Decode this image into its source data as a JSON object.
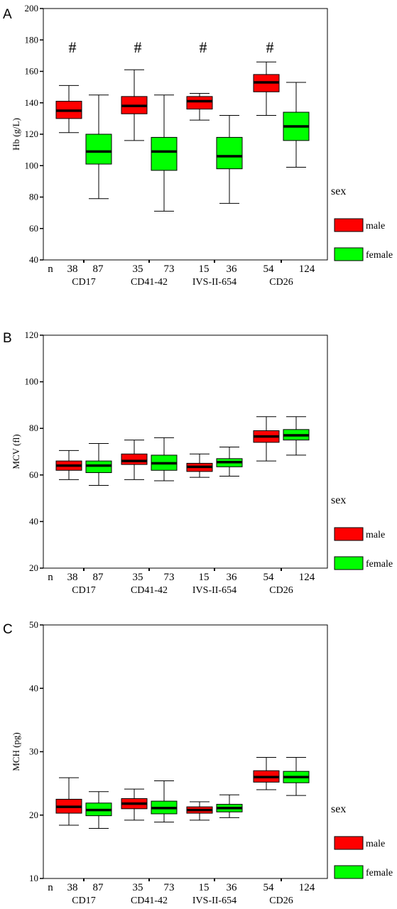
{
  "chart_data": [
    {
      "type": "box",
      "panel": "A",
      "ylabel": "Hb (g/L)",
      "ylim": [
        40,
        200
      ],
      "yticks": [
        40,
        60,
        80,
        100,
        120,
        140,
        160,
        180,
        200
      ],
      "count_label": "n",
      "groups": [
        "CD17",
        "CD41-42",
        "IVS-II-654",
        "CD26"
      ],
      "legend": {
        "title": "sex",
        "position": "right"
      },
      "series": [
        {
          "name": "male",
          "color": "#ff0000",
          "n": [
            38,
            35,
            15,
            54
          ],
          "boxes": [
            {
              "min": 121,
              "q1": 130,
              "median": 135,
              "q3": 141,
              "max": 151
            },
            {
              "min": 116,
              "q1": 133,
              "median": 138,
              "q3": 144,
              "max": 161
            },
            {
              "min": 129,
              "q1": 136,
              "median": 141,
              "q3": 144,
              "max": 146
            },
            {
              "min": 132,
              "q1": 147,
              "median": 153,
              "q3": 158,
              "max": 166
            }
          ]
        },
        {
          "name": "female",
          "color": "#00ff00",
          "n": [
            87,
            73,
            36,
            124
          ],
          "boxes": [
            {
              "min": 79,
              "q1": 101,
              "median": 109,
              "q3": 120,
              "max": 145
            },
            {
              "min": 71,
              "q1": 97,
              "median": 109,
              "q3": 118,
              "max": 145
            },
            {
              "min": 76,
              "q1": 98,
              "median": 106,
              "q3": 118,
              "max": 132
            },
            {
              "min": 99,
              "q1": 116,
              "median": 125,
              "q3": 134,
              "max": 153
            }
          ]
        }
      ],
      "annotations": [
        "#",
        "#",
        "#",
        "#"
      ]
    },
    {
      "type": "box",
      "panel": "B",
      "ylabel": "MCV (fl)",
      "ylim": [
        20,
        120
      ],
      "yticks": [
        20,
        40,
        60,
        80,
        100,
        120
      ],
      "count_label": "n",
      "groups": [
        "CD17",
        "CD41-42",
        "IVS-II-654",
        "CD26"
      ],
      "legend": {
        "title": "sex",
        "position": "right"
      },
      "series": [
        {
          "name": "male",
          "color": "#ff0000",
          "n": [
            38,
            35,
            15,
            54
          ],
          "boxes": [
            {
              "min": 58,
              "q1": 62,
              "median": 64,
              "q3": 66,
              "max": 70.5
            },
            {
              "min": 58,
              "q1": 64.5,
              "median": 66,
              "q3": 69,
              "max": 75
            },
            {
              "min": 59,
              "q1": 61.5,
              "median": 63.5,
              "q3": 65,
              "max": 69
            },
            {
              "min": 66,
              "q1": 74,
              "median": 76.5,
              "q3": 79,
              "max": 85
            }
          ]
        },
        {
          "name": "female",
          "color": "#00ff00",
          "n": [
            87,
            73,
            36,
            124
          ],
          "boxes": [
            {
              "min": 55.5,
              "q1": 61,
              "median": 64,
              "q3": 66,
              "max": 73.5
            },
            {
              "min": 57.5,
              "q1": 62,
              "median": 65,
              "q3": 68.5,
              "max": 76
            },
            {
              "min": 59.5,
              "q1": 63.5,
              "median": 65.5,
              "q3": 67,
              "max": 72
            },
            {
              "min": 68.5,
              "q1": 75,
              "median": 77,
              "q3": 79.5,
              "max": 85
            }
          ]
        }
      ]
    },
    {
      "type": "box",
      "panel": "C",
      "ylabel": "MCH (pg)",
      "ylim": [
        10,
        50
      ],
      "yticks": [
        10,
        20,
        30,
        40,
        50
      ],
      "count_label": "n",
      "groups": [
        "CD17",
        "CD41-42",
        "IVS-II-654",
        "CD26"
      ],
      "legend": {
        "title": "sex",
        "position": "right"
      },
      "series": [
        {
          "name": "male",
          "color": "#ff0000",
          "n": [
            38,
            35,
            15,
            54
          ],
          "boxes": [
            {
              "min": 18.4,
              "q1": 20.3,
              "median": 21.3,
              "q3": 22.5,
              "max": 25.9
            },
            {
              "min": 19.2,
              "q1": 21.0,
              "median": 21.8,
              "q3": 22.6,
              "max": 24.1
            },
            {
              "min": 19.2,
              "q1": 20.3,
              "median": 20.8,
              "q3": 21.3,
              "max": 22.1
            },
            {
              "min": 24.0,
              "q1": 25.2,
              "median": 26.0,
              "q3": 27.0,
              "max": 29.1
            }
          ]
        },
        {
          "name": "female",
          "color": "#00ff00",
          "n": [
            87,
            73,
            36,
            124
          ],
          "boxes": [
            {
              "min": 17.9,
              "q1": 19.9,
              "median": 20.8,
              "q3": 21.9,
              "max": 23.7
            },
            {
              "min": 18.9,
              "q1": 20.2,
              "median": 21.1,
              "q3": 22.2,
              "max": 25.4
            },
            {
              "min": 19.6,
              "q1": 20.5,
              "median": 21.1,
              "q3": 21.7,
              "max": 23.2
            },
            {
              "min": 23.1,
              "q1": 25.1,
              "median": 26.0,
              "q3": 26.9,
              "max": 29.1
            }
          ]
        }
      ]
    }
  ]
}
